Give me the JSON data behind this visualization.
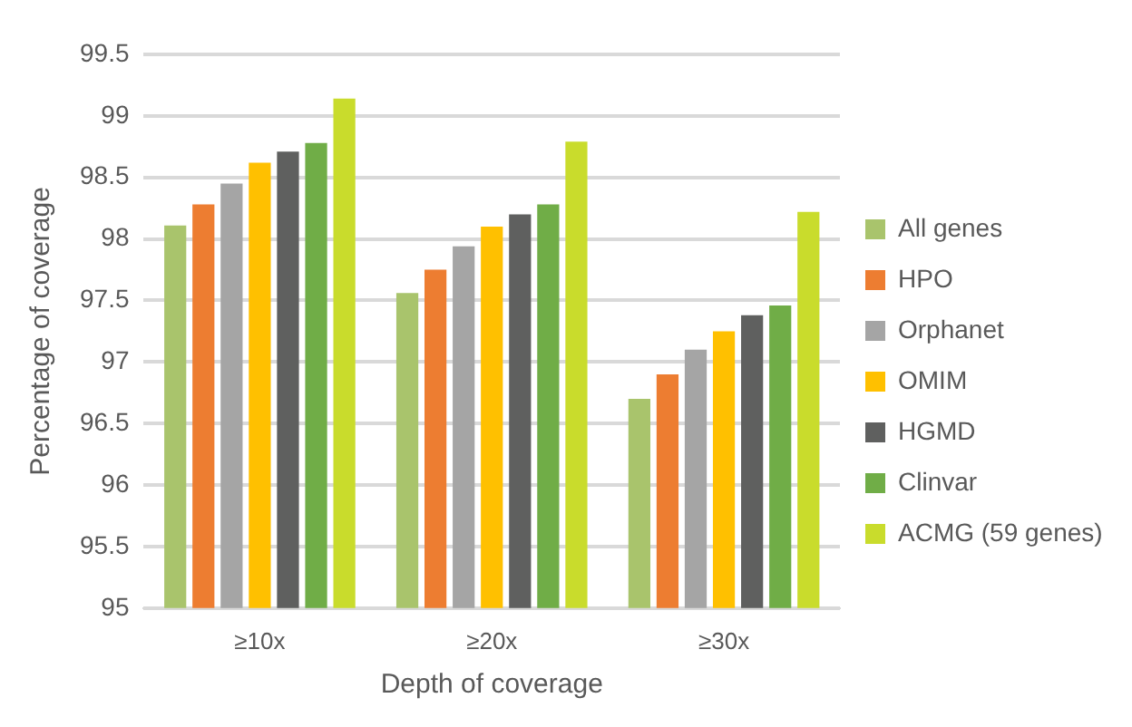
{
  "chart_data": {
    "type": "bar",
    "xlabel": "Depth of coverage",
    "ylabel": "Percentage of coverage",
    "categories": [
      "≥10x",
      "≥20x",
      "≥30x"
    ],
    "series": [
      {
        "name": "All genes",
        "color": "#a9c46c",
        "values": [
          98.11,
          97.56,
          96.7
        ]
      },
      {
        "name": "HPO",
        "color": "#ed7d31",
        "values": [
          98.28,
          97.75,
          96.9
        ]
      },
      {
        "name": "Orphanet",
        "color": "#a5a5a5",
        "values": [
          98.45,
          97.94,
          97.1
        ]
      },
      {
        "name": "OMIM",
        "color": "#ffc000",
        "values": [
          98.62,
          98.1,
          97.25
        ]
      },
      {
        "name": "HGMD",
        "color": "#5f605f",
        "values": [
          98.71,
          98.2,
          97.38
        ]
      },
      {
        "name": "Clinvar",
        "color": "#70ad47",
        "values": [
          98.78,
          98.28,
          97.46
        ]
      },
      {
        "name": "ACMG (59 genes)",
        "color": "#c9dc2c",
        "values": [
          99.14,
          98.79,
          98.22
        ]
      }
    ],
    "ylim": [
      95,
      99.5
    ],
    "yticks": [
      95,
      95.5,
      96,
      96.5,
      97,
      97.5,
      98,
      98.5,
      99,
      99.5
    ],
    "grid": "y",
    "legend": "right"
  }
}
